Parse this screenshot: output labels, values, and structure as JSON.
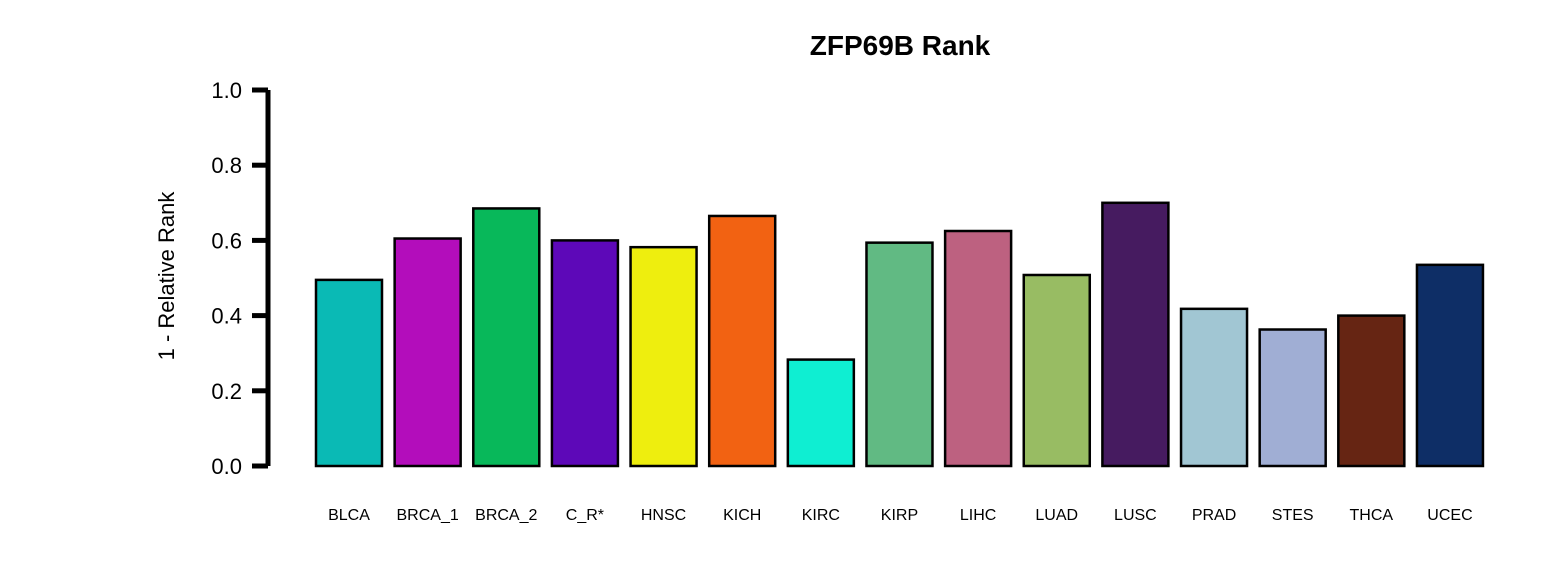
{
  "chart_data": {
    "type": "bar",
    "title": "ZFP69B Rank",
    "ylabel": "1 - Relative Rank",
    "xlabel": "",
    "ylim": [
      0,
      1.0
    ],
    "yticks": [
      "0.0",
      "0.2",
      "0.4",
      "0.6",
      "0.8",
      "1.0"
    ],
    "categories": [
      "BLCA",
      "BRCA_1",
      "BRCA_2",
      "C_R*",
      "HNSC",
      "KICH",
      "KIRC",
      "KIRP",
      "LIHC",
      "LUAD",
      "LUSC",
      "PRAD",
      "STES",
      "THCA",
      "UCEC"
    ],
    "values": [
      0.495,
      0.605,
      0.685,
      0.6,
      0.582,
      0.665,
      0.283,
      0.594,
      0.625,
      0.508,
      0.7,
      0.418,
      0.363,
      0.4,
      0.535
    ],
    "colors": [
      "#0ABAB5",
      "#B30DBB",
      "#08B85A",
      "#5D08B8",
      "#EEEE0E",
      "#F26212",
      "#0FEED2",
      "#61BA83",
      "#BD6180",
      "#98BC63",
      "#461B60",
      "#A1C6D3",
      "#A0AED4",
      "#662513",
      "#0E2E66"
    ],
    "grid": false,
    "legend": "none"
  }
}
